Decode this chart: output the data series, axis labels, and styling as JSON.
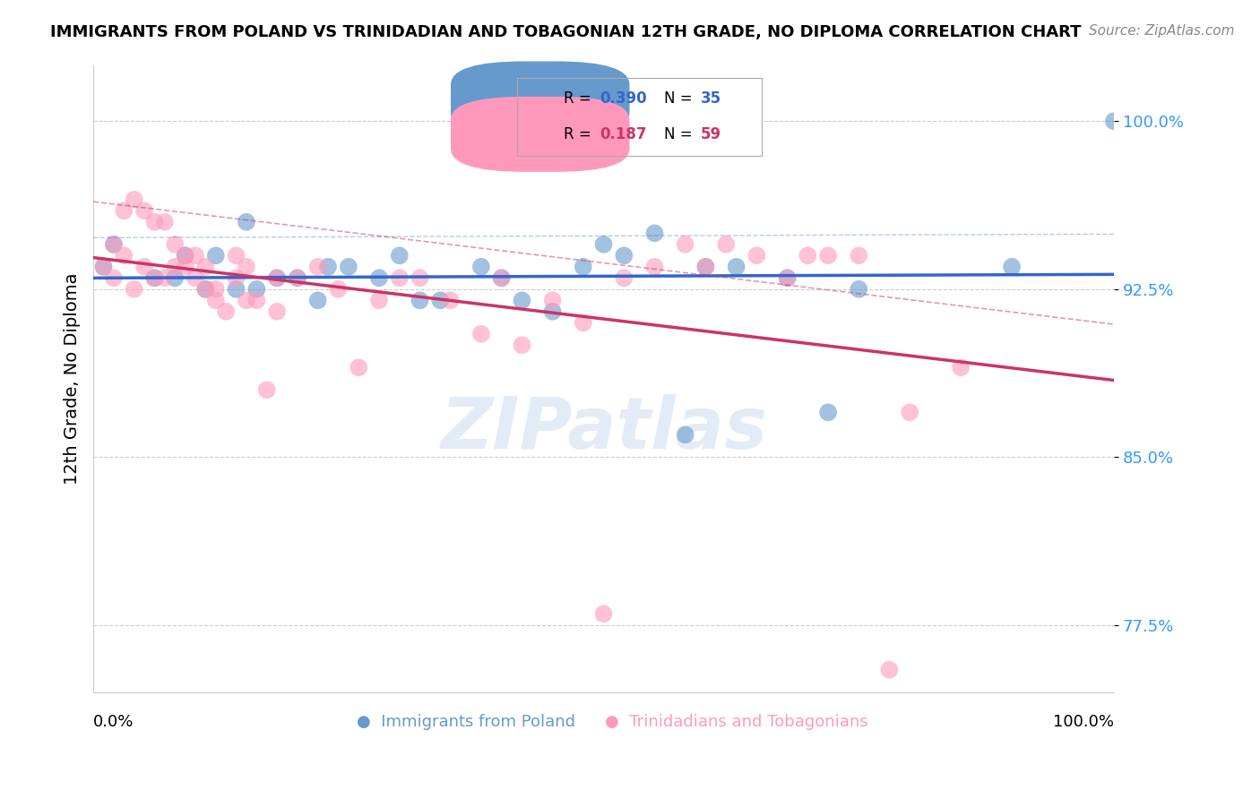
{
  "title": "IMMIGRANTS FROM POLAND VS TRINIDADIAN AND TOBAGONIAN 12TH GRADE, NO DIPLOMA CORRELATION CHART",
  "source": "Source: ZipAtlas.com",
  "ylabel": "12th Grade, No Diploma",
  "yticks": [
    77.5,
    85.0,
    92.5,
    100.0
  ],
  "legend_label1": "Immigrants from Poland",
  "legend_label2": "Trinidadians and Tobagonians",
  "blue_R": "0.390",
  "blue_N": "35",
  "pink_R": "0.187",
  "pink_N": "59",
  "blue_color": "#6699cc",
  "pink_color": "#ff99bb",
  "blue_line_color": "#3366cc",
  "pink_line_color": "#cc3366",
  "blue_points_x": [
    0.01,
    0.02,
    0.06,
    0.08,
    0.09,
    0.11,
    0.12,
    0.14,
    0.15,
    0.16,
    0.18,
    0.2,
    0.22,
    0.23,
    0.25,
    0.28,
    0.3,
    0.32,
    0.34,
    0.38,
    0.4,
    0.42,
    0.45,
    0.48,
    0.5,
    0.52,
    0.55,
    0.58,
    0.6,
    0.63,
    0.68,
    0.72,
    0.75,
    0.9,
    1.0
  ],
  "blue_points_y": [
    0.935,
    0.945,
    0.93,
    0.93,
    0.94,
    0.925,
    0.94,
    0.925,
    0.955,
    0.925,
    0.93,
    0.93,
    0.92,
    0.935,
    0.935,
    0.93,
    0.94,
    0.92,
    0.92,
    0.935,
    0.93,
    0.92,
    0.915,
    0.935,
    0.945,
    0.94,
    0.95,
    0.86,
    0.935,
    0.935,
    0.93,
    0.87,
    0.925,
    0.935,
    1.0
  ],
  "pink_points_x": [
    0.01,
    0.02,
    0.02,
    0.03,
    0.03,
    0.04,
    0.04,
    0.05,
    0.05,
    0.06,
    0.06,
    0.07,
    0.07,
    0.08,
    0.08,
    0.09,
    0.09,
    0.1,
    0.1,
    0.11,
    0.11,
    0.12,
    0.12,
    0.13,
    0.14,
    0.14,
    0.15,
    0.15,
    0.16,
    0.17,
    0.18,
    0.18,
    0.2,
    0.22,
    0.24,
    0.26,
    0.28,
    0.3,
    0.32,
    0.35,
    0.38,
    0.4,
    0.42,
    0.45,
    0.48,
    0.52,
    0.55,
    0.58,
    0.6,
    0.62,
    0.65,
    0.68,
    0.7,
    0.72,
    0.75,
    0.78,
    0.8,
    0.85,
    0.5
  ],
  "pink_points_y": [
    0.935,
    0.945,
    0.93,
    0.94,
    0.96,
    0.925,
    0.965,
    0.935,
    0.96,
    0.93,
    0.955,
    0.93,
    0.955,
    0.935,
    0.945,
    0.94,
    0.935,
    0.94,
    0.93,
    0.935,
    0.925,
    0.925,
    0.92,
    0.915,
    0.93,
    0.94,
    0.92,
    0.935,
    0.92,
    0.88,
    0.915,
    0.93,
    0.93,
    0.935,
    0.925,
    0.89,
    0.92,
    0.93,
    0.93,
    0.92,
    0.905,
    0.93,
    0.9,
    0.92,
    0.91,
    0.93,
    0.935,
    0.945,
    0.935,
    0.945,
    0.94,
    0.93,
    0.94,
    0.94,
    0.94,
    0.755,
    0.87,
    0.89,
    0.78
  ]
}
